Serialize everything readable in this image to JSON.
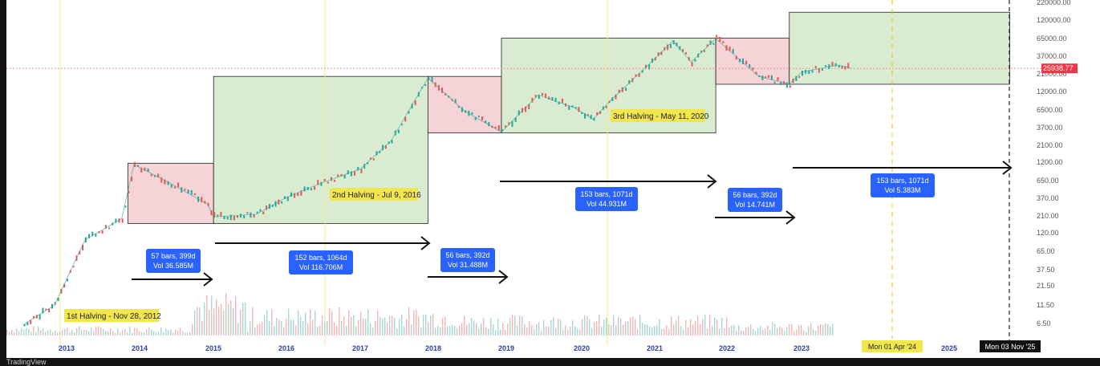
{
  "app": {
    "brand": "TradingView"
  },
  "chart_data": {
    "type": "candlestick",
    "x_axis": {
      "ticks": [
        "2013",
        "2014",
        "2015",
        "2016",
        "2017",
        "2018",
        "2019",
        "2020",
        "2021",
        "2022",
        "2023",
        "2025"
      ],
      "highlight_labels": [
        "Mon 01 Apr '24",
        "Mon 03 Nov '25"
      ]
    },
    "y_axis": {
      "scale": "log",
      "ticks": [
        "220000.00",
        "120000.00",
        "65000.00",
        "37000.00",
        "21000.00",
        "12000.00",
        "6500.00",
        "3700.00",
        "2100.00",
        "1200.00",
        "650.00",
        "370.00",
        "210.00",
        "120.00",
        "65.00",
        "37.50",
        "21.50",
        "11.50",
        "6.50"
      ],
      "current_price": "25938.77"
    },
    "price_series": [
      {
        "date": "2012-06",
        "close": 6.5
      },
      {
        "date": "2012-11",
        "close": 12
      },
      {
        "date": "2013-04",
        "close": 100
      },
      {
        "date": "2013-10",
        "close": 200
      },
      {
        "date": "2013-12",
        "close": 1150
      },
      {
        "date": "2014-06",
        "close": 620
      },
      {
        "date": "2014-12",
        "close": 320
      },
      {
        "date": "2015-01",
        "close": 210
      },
      {
        "date": "2015-08",
        "close": 230
      },
      {
        "date": "2016-01",
        "close": 400
      },
      {
        "date": "2016-07",
        "close": 650
      },
      {
        "date": "2017-01",
        "close": 1000
      },
      {
        "date": "2017-06",
        "close": 2500
      },
      {
        "date": "2017-12",
        "close": 19000
      },
      {
        "date": "2018-06",
        "close": 6500
      },
      {
        "date": "2018-12",
        "close": 3300
      },
      {
        "date": "2019-06",
        "close": 11000
      },
      {
        "date": "2019-12",
        "close": 7200
      },
      {
        "date": "2020-03",
        "close": 5000
      },
      {
        "date": "2020-06",
        "close": 9500
      },
      {
        "date": "2020-12",
        "close": 29000
      },
      {
        "date": "2021-04",
        "close": 63000
      },
      {
        "date": "2021-07",
        "close": 32000
      },
      {
        "date": "2021-11",
        "close": 68000
      },
      {
        "date": "2022-06",
        "close": 20000
      },
      {
        "date": "2022-11",
        "close": 15500
      },
      {
        "date": "2023-01",
        "close": 23000
      },
      {
        "date": "2023-07",
        "close": 29000
      },
      {
        "date": "2023-09",
        "close": 25938.77
      }
    ],
    "halvings": [
      {
        "label": "1st Halving - Nov 28, 2012"
      },
      {
        "label": "2nd Halving - Jul 9, 2016"
      },
      {
        "label": "3rd Halving - May 11, 2020"
      }
    ],
    "zones": [
      {
        "kind": "bear",
        "start": "2013-11",
        "end": "2015-01",
        "top": 1200,
        "bottom": 170
      },
      {
        "kind": "bull",
        "start": "2015-01",
        "end": "2017-12",
        "top": 20000,
        "bottom": 170
      },
      {
        "kind": "bear",
        "start": "2017-12",
        "end": "2018-12",
        "top": 20000,
        "bottom": 3200
      },
      {
        "kind": "bull",
        "start": "2018-12",
        "end": "2021-11",
        "top": 69000,
        "bottom": 3200
      },
      {
        "kind": "bear",
        "start": "2021-11",
        "end": "2022-11",
        "top": 69000,
        "bottom": 15500
      },
      {
        "kind": "bull",
        "start": "2022-11",
        "end": "2025-11",
        "top": 160000,
        "bottom": 15500
      }
    ],
    "measurements": [
      {
        "line1": "57 bars, 399d",
        "line2": "Vol 36.585M"
      },
      {
        "line1": "152 bars, 1064d",
        "line2": "Vol 116.706M"
      },
      {
        "line1": "56 bars, 392d",
        "line2": "Vol 31.488M"
      },
      {
        "line1": "153 bars, 1071d",
        "line2": "Vol 44.931M"
      },
      {
        "line1": "56 bars, 392d",
        "line2": "Vol 14.741M"
      },
      {
        "line1": "153 bars, 1071d",
        "line2": "Vol 5.383M"
      }
    ],
    "colors": {
      "bull_zone": "#d9ecd2",
      "bear_zone": "#f6d3d6",
      "up": "#26a69a",
      "down": "#ef5350",
      "label_bg": "#2962ff",
      "halving_bg": "#f2e64f",
      "price_tag": "#f23645"
    }
  }
}
